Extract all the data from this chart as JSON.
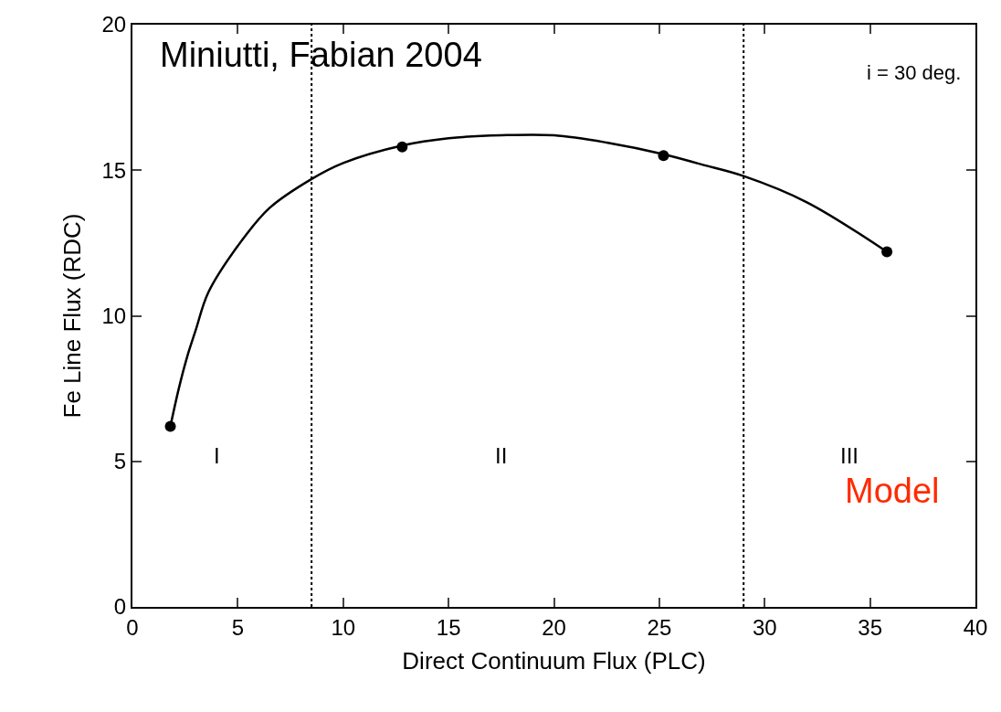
{
  "chart_data": {
    "type": "line",
    "xlabel": "Direct Continuum Flux (PLC)",
    "ylabel": "Fe Line Flux (RDC)",
    "xlim": [
      0,
      40
    ],
    "ylim": [
      0,
      20
    ],
    "xticks": [
      0,
      5,
      10,
      15,
      20,
      25,
      30,
      35,
      40
    ],
    "yticks": [
      0,
      5,
      10,
      15,
      20
    ],
    "series": [
      {
        "color": "#000000",
        "marker": "none",
        "line_style": "solid",
        "x": [
          1.8,
          2.2,
          2.6,
          3.0,
          3.6,
          5.0,
          6.5,
          8.5,
          10.0,
          12.8,
          15.0,
          17.5,
          20.0,
          22.5,
          25.2,
          27.0,
          29.0,
          32.0,
          35.8
        ],
        "values": [
          6.2,
          7.5,
          8.6,
          9.5,
          10.8,
          12.4,
          13.7,
          14.7,
          15.25,
          15.85,
          16.1,
          16.2,
          16.2,
          15.95,
          15.55,
          15.2,
          14.8,
          13.9,
          12.2
        ]
      },
      {
        "type": "scatter",
        "color": "#000000",
        "marker": "circle",
        "x": [
          1.8,
          12.8,
          25.2,
          35.8
        ],
        "values": [
          6.2,
          15.8,
          15.5,
          12.2
        ]
      }
    ],
    "ref_lines": [
      {
        "axis": "x",
        "value": 8.5,
        "color": "#000000",
        "line_style": "dotted"
      },
      {
        "axis": "x",
        "value": 29,
        "color": "#000000",
        "line_style": "dotted"
      }
    ],
    "annotations": [
      "I",
      "II",
      "III",
      "Miniutti, Fabian 2004",
      "i = 30 deg.",
      "Model"
    ]
  }
}
